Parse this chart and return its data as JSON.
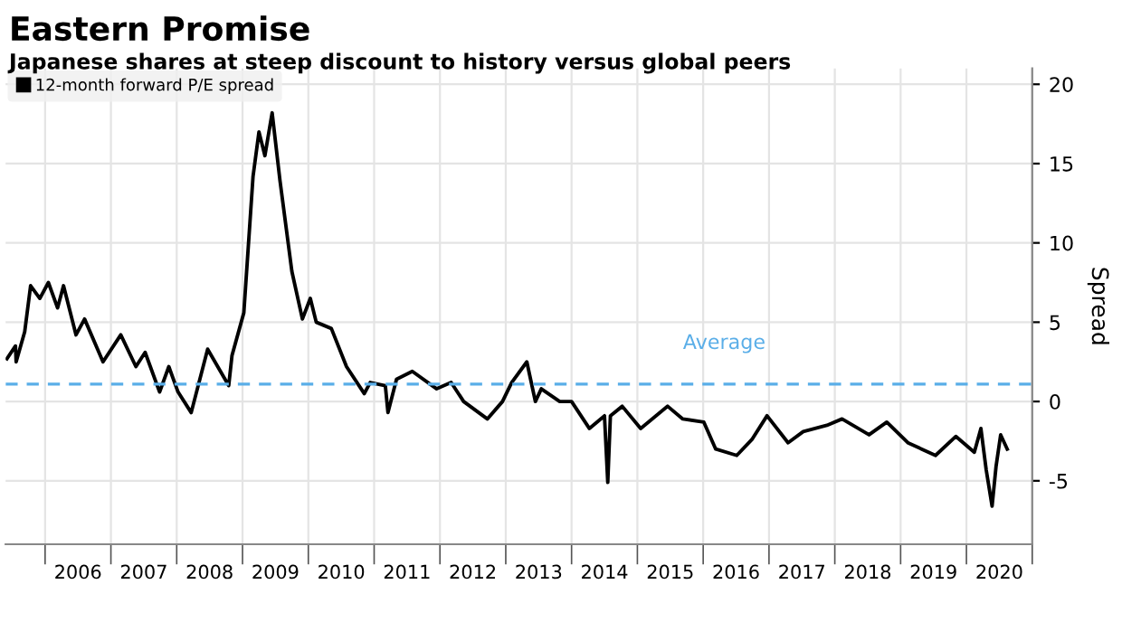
{
  "chart_data": {
    "type": "line",
    "title": "Eastern Promise",
    "subtitle": "Japanese shares at steep discount to history versus global peers",
    "ylabel": "Spread",
    "series": [
      {
        "name": "12-month forward P/E spread",
        "color": "#000000",
        "x": [
          2005.42,
          2005.55,
          2005.56,
          2005.69,
          2005.78,
          2005.92,
          2006.05,
          2006.19,
          2006.28,
          2006.47,
          2006.6,
          2006.88,
          2007.15,
          2007.38,
          2007.52,
          2007.74,
          2007.88,
          2008.02,
          2008.22,
          2008.47,
          2008.79,
          2008.84,
          2009.02,
          2009.16,
          2009.25,
          2009.34,
          2009.45,
          2009.57,
          2009.75,
          2009.91,
          2010.03,
          2010.12,
          2010.35,
          2010.58,
          2010.85,
          2010.94,
          2011.17,
          2011.21,
          2011.34,
          2011.58,
          2011.95,
          2012.17,
          2012.36,
          2012.72,
          2012.95,
          2013.09,
          2013.32,
          2013.45,
          2013.54,
          2013.82,
          2014.0,
          2014.27,
          2014.5,
          2014.55,
          2014.59,
          2014.77,
          2015.05,
          2015.46,
          2015.69,
          2016.01,
          2016.19,
          2016.51,
          2016.74,
          2016.97,
          2017.29,
          2017.52,
          2017.88,
          2018.11,
          2018.52,
          2018.79,
          2019.11,
          2019.53,
          2019.84,
          2020.12,
          2020.22,
          2020.3,
          2020.39,
          2020.45,
          2020.52,
          2020.62
        ],
        "values": [
          2.7,
          3.5,
          2.5,
          4.4,
          7.3,
          6.5,
          7.5,
          5.9,
          7.3,
          4.2,
          5.2,
          2.5,
          4.2,
          2.2,
          3.1,
          0.6,
          2.2,
          0.6,
          -0.7,
          3.3,
          1.0,
          2.9,
          5.6,
          14.2,
          17.0,
          15.5,
          18.2,
          13.9,
          8.2,
          5.2,
          6.5,
          5.0,
          4.6,
          2.2,
          0.5,
          1.2,
          1.0,
          -0.7,
          1.4,
          1.9,
          0.8,
          1.2,
          0.0,
          -1.1,
          0.0,
          1.2,
          2.5,
          0.0,
          0.8,
          0.0,
          0.0,
          -1.7,
          -0.9,
          -5.1,
          -0.9,
          -0.3,
          -1.7,
          -0.3,
          -1.1,
          -1.3,
          -3.0,
          -3.4,
          -2.4,
          -0.9,
          -2.6,
          -1.9,
          -1.5,
          -1.1,
          -2.1,
          -1.3,
          -2.6,
          -3.4,
          -2.2,
          -3.2,
          -1.7,
          -4.3,
          -6.6,
          -4.1,
          -2.1,
          -3.0
        ]
      }
    ],
    "xlim": [
      2005.4,
      2021.0
    ],
    "xticks": [
      {
        "value": 2006,
        "label": null
      },
      {
        "value": 2006.5,
        "label": "2006"
      },
      {
        "value": 2007,
        "label": null
      },
      {
        "value": 2007.5,
        "label": "2007"
      },
      {
        "value": 2008,
        "label": null
      },
      {
        "value": 2008.5,
        "label": "2008"
      },
      {
        "value": 2009,
        "label": null
      },
      {
        "value": 2009.5,
        "label": "2009"
      },
      {
        "value": 2010,
        "label": null
      },
      {
        "value": 2010.5,
        "label": "2010"
      },
      {
        "value": 2011,
        "label": null
      },
      {
        "value": 2011.5,
        "label": "2011"
      },
      {
        "value": 2012,
        "label": null
      },
      {
        "value": 2012.5,
        "label": "2012"
      },
      {
        "value": 2013,
        "label": null
      },
      {
        "value": 2013.5,
        "label": "2013"
      },
      {
        "value": 2014,
        "label": null
      },
      {
        "value": 2014.5,
        "label": "2014"
      },
      {
        "value": 2015,
        "label": null
      },
      {
        "value": 2015.5,
        "label": "2015"
      },
      {
        "value": 2016,
        "label": null
      },
      {
        "value": 2016.5,
        "label": "2016"
      },
      {
        "value": 2017,
        "label": null
      },
      {
        "value": 2017.5,
        "label": "2017"
      },
      {
        "value": 2018,
        "label": null
      },
      {
        "value": 2018.5,
        "label": "2018"
      },
      {
        "value": 2019,
        "label": null
      },
      {
        "value": 2019.5,
        "label": "2019"
      },
      {
        "value": 2020,
        "label": null
      },
      {
        "value": 2020.5,
        "label": "2020"
      },
      {
        "value": 2021,
        "label": null
      }
    ],
    "ylim": [
      -9,
      21
    ],
    "yticks": [
      -5,
      0,
      5,
      10,
      15,
      20
    ],
    "ref_lines": [
      {
        "axis": "y",
        "value": 1.1,
        "label": "Average",
        "color": "#5aaee8",
        "line_style": "dashed"
      }
    ],
    "grid": true,
    "legend": "top left",
    "marker": "none",
    "line_style": "solid"
  }
}
